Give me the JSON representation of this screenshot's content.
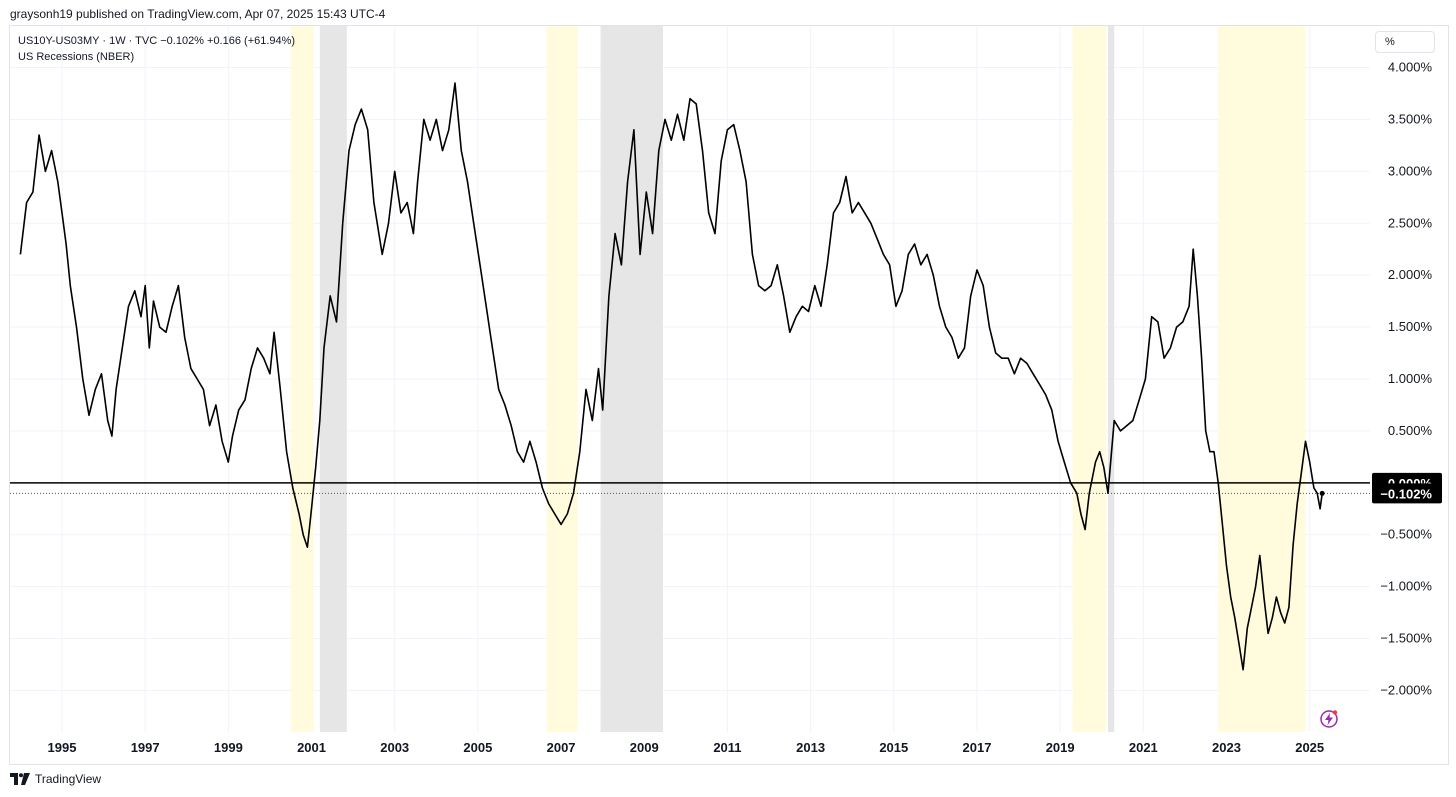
{
  "header": {
    "publish_line": "graysonh19 published on TradingView.com, Apr 07, 2025 15:43 UTC-4"
  },
  "legend": {
    "series_line": "US10Y-US03MY · 1W · TVC  −0.102%  +0.166 (+61.94%)",
    "indicator_line": "US Recessions (NBER)"
  },
  "price_axis_unit": "%",
  "footer": {
    "brand": "TradingView"
  },
  "colors": {
    "line": "#000000",
    "recession_shade": "#e6e6e6",
    "highlight_shade": "#fffbdc",
    "label_bg": "#000000",
    "label_text": "#ffffff",
    "grid": "#f0f3fa"
  },
  "icons": {
    "footer_logo": "tradingview-logo-icon",
    "alert": "lightning-icon"
  },
  "chart_data": {
    "type": "line",
    "title": "US10Y-US03MY · 1W · TVC",
    "ylim": [
      -2.4,
      4.4
    ],
    "xlim": [
      1993.75,
      2026.45
    ],
    "ylabel_unit": "%",
    "x_ticks": [
      1995,
      1997,
      1999,
      2001,
      2003,
      2005,
      2007,
      2009,
      2011,
      2013,
      2015,
      2017,
      2019,
      2021,
      2023,
      2025
    ],
    "x_tick_labels": [
      "1995",
      "1997",
      "1999",
      "2001",
      "2003",
      "2005",
      "2007",
      "2009",
      "2011",
      "2013",
      "2015",
      "2017",
      "2019",
      "2021",
      "2023",
      "2025"
    ],
    "y_ticks": [
      4.0,
      3.5,
      3.0,
      2.5,
      2.0,
      1.5,
      1.0,
      0.5,
      -0.5,
      -1.0,
      -1.5,
      -2.0
    ],
    "y_tick_labels": [
      "4.000%",
      "3.500%",
      "3.000%",
      "2.500%",
      "2.000%",
      "1.500%",
      "1.000%",
      "0.500%",
      "−0.500%",
      "−1.000%",
      "−1.500%",
      "−2.000%"
    ],
    "reference_line": {
      "value": 0.0,
      "label": "0.000%"
    },
    "last_value": {
      "value": -0.102,
      "label": "−0.102%"
    },
    "recessions": [
      [
        2001.2,
        2001.85
      ],
      [
        2007.95,
        2009.45
      ],
      [
        2020.15,
        2020.3
      ]
    ],
    "highlights": [
      [
        2000.5,
        2001.05
      ],
      [
        2006.65,
        2007.4
      ],
      [
        2019.3,
        2020.1
      ],
      [
        2022.8,
        2024.9
      ]
    ],
    "series": [
      {
        "name": "US10Y-US03MY",
        "points": [
          [
            1994.0,
            2.2
          ],
          [
            1994.15,
            2.7
          ],
          [
            1994.3,
            2.8
          ],
          [
            1994.45,
            3.35
          ],
          [
            1994.6,
            3.0
          ],
          [
            1994.75,
            3.2
          ],
          [
            1994.9,
            2.9
          ],
          [
            1995.0,
            2.6
          ],
          [
            1995.1,
            2.3
          ],
          [
            1995.2,
            1.9
          ],
          [
            1995.35,
            1.5
          ],
          [
            1995.5,
            1.0
          ],
          [
            1995.65,
            0.65
          ],
          [
            1995.8,
            0.9
          ],
          [
            1995.95,
            1.05
          ],
          [
            1996.1,
            0.6
          ],
          [
            1996.2,
            0.45
          ],
          [
            1996.3,
            0.9
          ],
          [
            1996.45,
            1.3
          ],
          [
            1996.6,
            1.7
          ],
          [
            1996.75,
            1.85
          ],
          [
            1996.9,
            1.6
          ],
          [
            1997.0,
            1.9
          ],
          [
            1997.1,
            1.3
          ],
          [
            1997.2,
            1.75
          ],
          [
            1997.35,
            1.5
          ],
          [
            1997.5,
            1.45
          ],
          [
            1997.65,
            1.7
          ],
          [
            1997.8,
            1.9
          ],
          [
            1997.95,
            1.4
          ],
          [
            1998.1,
            1.1
          ],
          [
            1998.25,
            1.0
          ],
          [
            1998.4,
            0.9
          ],
          [
            1998.55,
            0.55
          ],
          [
            1998.7,
            0.75
          ],
          [
            1998.85,
            0.4
          ],
          [
            1999.0,
            0.2
          ],
          [
            1999.1,
            0.45
          ],
          [
            1999.25,
            0.7
          ],
          [
            1999.4,
            0.8
          ],
          [
            1999.55,
            1.1
          ],
          [
            1999.7,
            1.3
          ],
          [
            1999.85,
            1.2
          ],
          [
            2000.0,
            1.05
          ],
          [
            2000.1,
            1.45
          ],
          [
            2000.25,
            0.9
          ],
          [
            2000.4,
            0.3
          ],
          [
            2000.55,
            -0.05
          ],
          [
            2000.7,
            -0.3
          ],
          [
            2000.8,
            -0.5
          ],
          [
            2000.9,
            -0.62
          ],
          [
            2001.0,
            -0.25
          ],
          [
            2001.1,
            0.15
          ],
          [
            2001.2,
            0.6
          ],
          [
            2001.3,
            1.3
          ],
          [
            2001.45,
            1.8
          ],
          [
            2001.6,
            1.55
          ],
          [
            2001.75,
            2.5
          ],
          [
            2001.9,
            3.2
          ],
          [
            2002.05,
            3.45
          ],
          [
            2002.2,
            3.6
          ],
          [
            2002.35,
            3.4
          ],
          [
            2002.5,
            2.7
          ],
          [
            2002.7,
            2.2
          ],
          [
            2002.85,
            2.5
          ],
          [
            2003.0,
            3.0
          ],
          [
            2003.15,
            2.6
          ],
          [
            2003.3,
            2.7
          ],
          [
            2003.45,
            2.4
          ],
          [
            2003.55,
            2.9
          ],
          [
            2003.7,
            3.5
          ],
          [
            2003.85,
            3.3
          ],
          [
            2004.0,
            3.5
          ],
          [
            2004.15,
            3.2
          ],
          [
            2004.3,
            3.4
          ],
          [
            2004.45,
            3.85
          ],
          [
            2004.6,
            3.2
          ],
          [
            2004.75,
            2.9
          ],
          [
            2004.9,
            2.5
          ],
          [
            2005.05,
            2.1
          ],
          [
            2005.2,
            1.7
          ],
          [
            2005.35,
            1.3
          ],
          [
            2005.5,
            0.9
          ],
          [
            2005.65,
            0.75
          ],
          [
            2005.8,
            0.55
          ],
          [
            2005.95,
            0.3
          ],
          [
            2006.1,
            0.2
          ],
          [
            2006.25,
            0.4
          ],
          [
            2006.4,
            0.2
          ],
          [
            2006.55,
            -0.05
          ],
          [
            2006.7,
            -0.2
          ],
          [
            2006.85,
            -0.3
          ],
          [
            2007.0,
            -0.4
          ],
          [
            2007.15,
            -0.3
          ],
          [
            2007.3,
            -0.1
          ],
          [
            2007.45,
            0.3
          ],
          [
            2007.6,
            0.9
          ],
          [
            2007.75,
            0.6
          ],
          [
            2007.9,
            1.1
          ],
          [
            2008.0,
            0.7
          ],
          [
            2008.15,
            1.8
          ],
          [
            2008.3,
            2.4
          ],
          [
            2008.45,
            2.1
          ],
          [
            2008.6,
            2.9
          ],
          [
            2008.75,
            3.4
          ],
          [
            2008.9,
            2.2
          ],
          [
            2009.05,
            2.8
          ],
          [
            2009.2,
            2.4
          ],
          [
            2009.35,
            3.2
          ],
          [
            2009.5,
            3.5
          ],
          [
            2009.65,
            3.3
          ],
          [
            2009.8,
            3.55
          ],
          [
            2009.95,
            3.3
          ],
          [
            2010.1,
            3.7
          ],
          [
            2010.25,
            3.65
          ],
          [
            2010.4,
            3.2
          ],
          [
            2010.55,
            2.6
          ],
          [
            2010.7,
            2.4
          ],
          [
            2010.85,
            3.1
          ],
          [
            2011.0,
            3.4
          ],
          [
            2011.15,
            3.45
          ],
          [
            2011.3,
            3.2
          ],
          [
            2011.45,
            2.9
          ],
          [
            2011.6,
            2.2
          ],
          [
            2011.75,
            1.9
          ],
          [
            2011.9,
            1.85
          ],
          [
            2012.05,
            1.9
          ],
          [
            2012.2,
            2.1
          ],
          [
            2012.35,
            1.8
          ],
          [
            2012.5,
            1.45
          ],
          [
            2012.65,
            1.6
          ],
          [
            2012.8,
            1.7
          ],
          [
            2012.95,
            1.65
          ],
          [
            2013.1,
            1.9
          ],
          [
            2013.25,
            1.7
          ],
          [
            2013.4,
            2.1
          ],
          [
            2013.55,
            2.6
          ],
          [
            2013.7,
            2.7
          ],
          [
            2013.85,
            2.95
          ],
          [
            2014.0,
            2.6
          ],
          [
            2014.15,
            2.7
          ],
          [
            2014.3,
            2.6
          ],
          [
            2014.45,
            2.5
          ],
          [
            2014.6,
            2.35
          ],
          [
            2014.75,
            2.2
          ],
          [
            2014.9,
            2.1
          ],
          [
            2015.05,
            1.7
          ],
          [
            2015.2,
            1.85
          ],
          [
            2015.35,
            2.2
          ],
          [
            2015.5,
            2.3
          ],
          [
            2015.65,
            2.1
          ],
          [
            2015.8,
            2.2
          ],
          [
            2015.95,
            2.0
          ],
          [
            2016.1,
            1.7
          ],
          [
            2016.25,
            1.5
          ],
          [
            2016.4,
            1.4
          ],
          [
            2016.55,
            1.2
          ],
          [
            2016.7,
            1.3
          ],
          [
            2016.85,
            1.8
          ],
          [
            2017.0,
            2.05
          ],
          [
            2017.15,
            1.9
          ],
          [
            2017.3,
            1.5
          ],
          [
            2017.45,
            1.25
          ],
          [
            2017.6,
            1.2
          ],
          [
            2017.75,
            1.2
          ],
          [
            2017.9,
            1.05
          ],
          [
            2018.05,
            1.2
          ],
          [
            2018.2,
            1.15
          ],
          [
            2018.35,
            1.05
          ],
          [
            2018.5,
            0.95
          ],
          [
            2018.65,
            0.85
          ],
          [
            2018.8,
            0.7
          ],
          [
            2018.95,
            0.4
          ],
          [
            2019.1,
            0.2
          ],
          [
            2019.25,
            0.0
          ],
          [
            2019.4,
            -0.1
          ],
          [
            2019.5,
            -0.3
          ],
          [
            2019.6,
            -0.45
          ],
          [
            2019.7,
            -0.1
          ],
          [
            2019.85,
            0.2
          ],
          [
            2019.95,
            0.3
          ],
          [
            2020.05,
            0.15
          ],
          [
            2020.15,
            -0.1
          ],
          [
            2020.3,
            0.6
          ],
          [
            2020.45,
            0.5
          ],
          [
            2020.6,
            0.55
          ],
          [
            2020.75,
            0.6
          ],
          [
            2020.9,
            0.8
          ],
          [
            2021.05,
            1.0
          ],
          [
            2021.2,
            1.6
          ],
          [
            2021.35,
            1.55
          ],
          [
            2021.5,
            1.2
          ],
          [
            2021.65,
            1.3
          ],
          [
            2021.8,
            1.5
          ],
          [
            2021.95,
            1.55
          ],
          [
            2022.1,
            1.7
          ],
          [
            2022.2,
            2.25
          ],
          [
            2022.3,
            1.8
          ],
          [
            2022.4,
            1.2
          ],
          [
            2022.5,
            0.5
          ],
          [
            2022.6,
            0.3
          ],
          [
            2022.7,
            0.3
          ],
          [
            2022.8,
            0.0
          ],
          [
            2022.9,
            -0.4
          ],
          [
            2023.0,
            -0.8
          ],
          [
            2023.1,
            -1.1
          ],
          [
            2023.2,
            -1.3
          ],
          [
            2023.3,
            -1.55
          ],
          [
            2023.4,
            -1.8
          ],
          [
            2023.5,
            -1.4
          ],
          [
            2023.6,
            -1.2
          ],
          [
            2023.7,
            -1.0
          ],
          [
            2023.8,
            -0.7
          ],
          [
            2023.9,
            -1.1
          ],
          [
            2024.0,
            -1.45
          ],
          [
            2024.1,
            -1.3
          ],
          [
            2024.2,
            -1.1
          ],
          [
            2024.3,
            -1.25
          ],
          [
            2024.4,
            -1.35
          ],
          [
            2024.5,
            -1.2
          ],
          [
            2024.6,
            -0.6
          ],
          [
            2024.7,
            -0.2
          ],
          [
            2024.8,
            0.1
          ],
          [
            2024.9,
            0.4
          ],
          [
            2025.0,
            0.2
          ],
          [
            2025.1,
            -0.05
          ],
          [
            2025.18,
            -0.1
          ],
          [
            2025.25,
            -0.25
          ],
          [
            2025.3,
            -0.102
          ]
        ]
      }
    ]
  }
}
